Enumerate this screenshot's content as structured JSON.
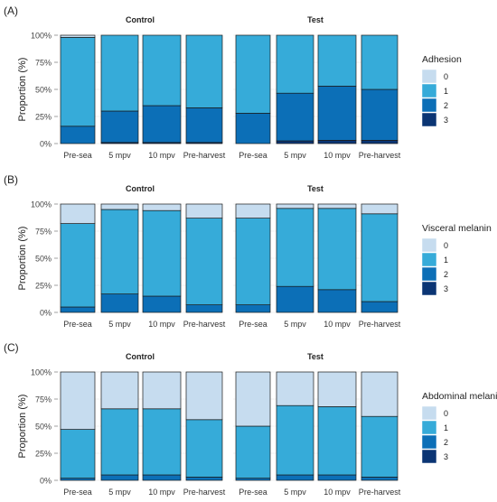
{
  "colors": {
    "0": "#c6dcef",
    "1": "#36abd9",
    "2": "#0c6fb7",
    "3": "#0b3574"
  },
  "y_ticks": [
    "0%",
    "25%",
    "50%",
    "75%",
    "100%"
  ],
  "chart_data": [
    {
      "type": "bar",
      "stacked": true,
      "panel_label": "(A)",
      "facets": [
        "Control",
        "Test"
      ],
      "categories": [
        "Pre-sea",
        "5 mpv",
        "10 mpv",
        "Pre-harvest"
      ],
      "ylabel": "Proportion (%)",
      "ylim": [
        0,
        100
      ],
      "legend_title": "Adhesion",
      "legend_position": "right",
      "series": [
        {
          "name": "3",
          "values": {
            "Control": [
              0,
              1,
              1,
              1
            ],
            "Test": [
              0,
              2.5,
              3,
              3
            ]
          }
        },
        {
          "name": "2",
          "values": {
            "Control": [
              16,
              29,
              34,
              32
            ],
            "Test": [
              28,
              44,
              50,
              47
            ]
          }
        },
        {
          "name": "1",
          "values": {
            "Control": [
              82,
              70,
              65,
              67
            ],
            "Test": [
              72,
              53.5,
              47,
              50
            ]
          }
        },
        {
          "name": "0",
          "values": {
            "Control": [
              2,
              0,
              0,
              0
            ],
            "Test": [
              0,
              0,
              0,
              0
            ]
          }
        }
      ]
    },
    {
      "type": "bar",
      "stacked": true,
      "panel_label": "(B)",
      "facets": [
        "Control",
        "Test"
      ],
      "categories": [
        "Pre-sea",
        "5 mpv",
        "10 mpv",
        "Pre-harvest"
      ],
      "ylabel": "Proportion (%)",
      "ylim": [
        0,
        100
      ],
      "legend_title": "Visceral melanin",
      "legend_position": "right",
      "series": [
        {
          "name": "3",
          "values": {
            "Control": [
              0,
              0,
              0,
              0
            ],
            "Test": [
              0,
              0,
              0,
              0
            ]
          }
        },
        {
          "name": "2",
          "values": {
            "Control": [
              5,
              17,
              15,
              7
            ],
            "Test": [
              7,
              24,
              21,
              10
            ]
          }
        },
        {
          "name": "1",
          "values": {
            "Control": [
              77,
              78,
              79,
              80
            ],
            "Test": [
              80,
              72,
              75,
              81
            ]
          }
        },
        {
          "name": "0",
          "values": {
            "Control": [
              18,
              5,
              6,
              13
            ],
            "Test": [
              13,
              4,
              4,
              9
            ]
          }
        }
      ]
    },
    {
      "type": "bar",
      "stacked": true,
      "panel_label": "(C)",
      "facets": [
        "Control",
        "Test"
      ],
      "categories": [
        "Pre-sea",
        "5 mpv",
        "10 mpv",
        "Pre-harvest"
      ],
      "ylabel": "Proportion (%)",
      "ylim": [
        0,
        100
      ],
      "legend_title": "Abdominal melanin",
      "legend_position": "right",
      "series": [
        {
          "name": "3",
          "values": {
            "Control": [
              0,
              0,
              0,
              0
            ],
            "Test": [
              0,
              0,
              0,
              0
            ]
          }
        },
        {
          "name": "2",
          "values": {
            "Control": [
              2,
              5,
              5,
              3
            ],
            "Test": [
              2,
              5,
              5,
              3
            ]
          }
        },
        {
          "name": "1",
          "values": {
            "Control": [
              45,
              61,
              61,
              53
            ],
            "Test": [
              48,
              64,
              63,
              56
            ]
          }
        },
        {
          "name": "0",
          "values": {
            "Control": [
              53,
              34,
              34,
              44
            ],
            "Test": [
              50,
              31,
              32,
              41
            ]
          }
        }
      ]
    }
  ]
}
